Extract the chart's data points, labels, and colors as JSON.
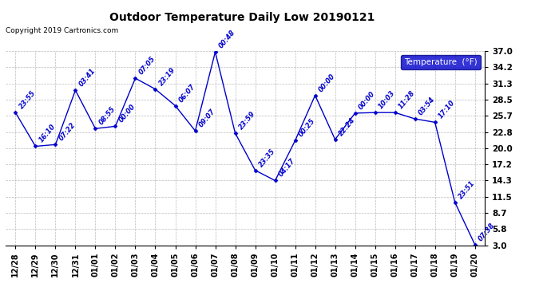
{
  "title": "Outdoor Temperature Daily Low 20190121",
  "copyright": "Copyright 2019 Cartronics.com",
  "legend_label": "Temperature  (°F)",
  "x_labels": [
    "12/28",
    "12/29",
    "12/30",
    "12/31",
    "01/01",
    "01/02",
    "01/03",
    "01/04",
    "01/05",
    "01/06",
    "01/07",
    "01/08",
    "01/09",
    "01/10",
    "01/11",
    "01/12",
    "01/13",
    "01/14",
    "01/15",
    "01/16",
    "01/17",
    "01/18",
    "01/19",
    "01/20"
  ],
  "y_values": [
    26.2,
    20.3,
    20.6,
    30.1,
    23.4,
    23.8,
    32.2,
    30.3,
    27.4,
    23.0,
    36.8,
    22.6,
    16.1,
    14.3,
    21.3,
    29.2,
    21.5,
    26.1,
    26.2,
    26.2,
    25.1,
    24.5,
    10.5,
    3.1
  ],
  "point_labels": [
    "23:55",
    "16:10",
    "07:22",
    "03:41",
    "08:55",
    "00:00",
    "07:05",
    "23:19",
    "06:07",
    "09:07",
    "00:48",
    "23:59",
    "23:35",
    "04:17",
    "00:25",
    "00:00",
    "22:24",
    "00:00",
    "10:03",
    "11:28",
    "03:54",
    "17:10",
    "23:51",
    "07:38"
  ],
  "ylim_min": 3.0,
  "ylim_max": 37.0,
  "yticks": [
    3.0,
    5.8,
    8.7,
    11.5,
    14.3,
    17.2,
    20.0,
    22.8,
    25.7,
    28.5,
    31.3,
    34.2,
    37.0
  ],
  "line_color": "#0000CC",
  "marker_color": "#0000CC",
  "bg_color": "#ffffff",
  "grid_color": "#aaaaaa",
  "title_color": "#000000",
  "label_color": "#0000CC",
  "legend_bg": "#0000CC",
  "legend_fg": "#ffffff"
}
